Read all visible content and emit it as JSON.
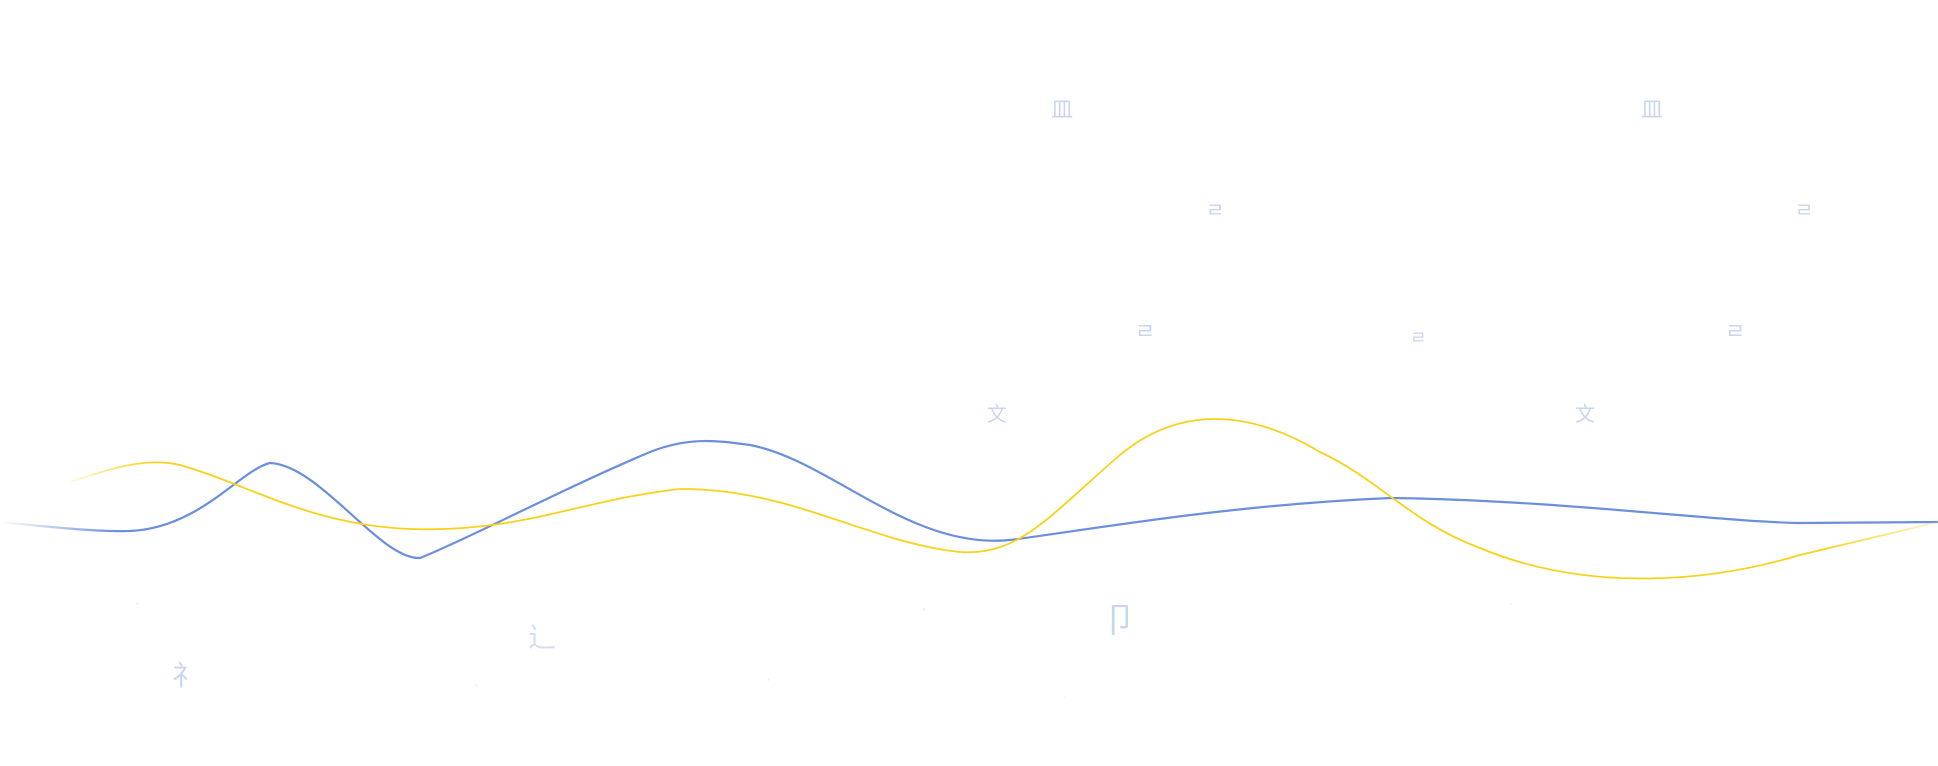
{
  "colors": {
    "background": "#ffffff",
    "wave_blue": "#6b8fdc",
    "wave_yellow": "#f7d21b",
    "glyph": "#c9d6ef"
  },
  "waves": [
    {
      "name": "blue-wave",
      "color": "#6b8fdc"
    },
    {
      "name": "yellow-wave",
      "color": "#f7d21b"
    }
  ],
  "decorations": {
    "glyph_marks": [
      "皿",
      "皿",
      "ㄹ",
      "ㄹ",
      "ㄹ",
      "文",
      "文",
      "ㄹ",
      "ㄹ",
      "·",
      "辶",
      "礻",
      "·",
      "·",
      "·",
      "卩",
      "·",
      "·"
    ]
  }
}
